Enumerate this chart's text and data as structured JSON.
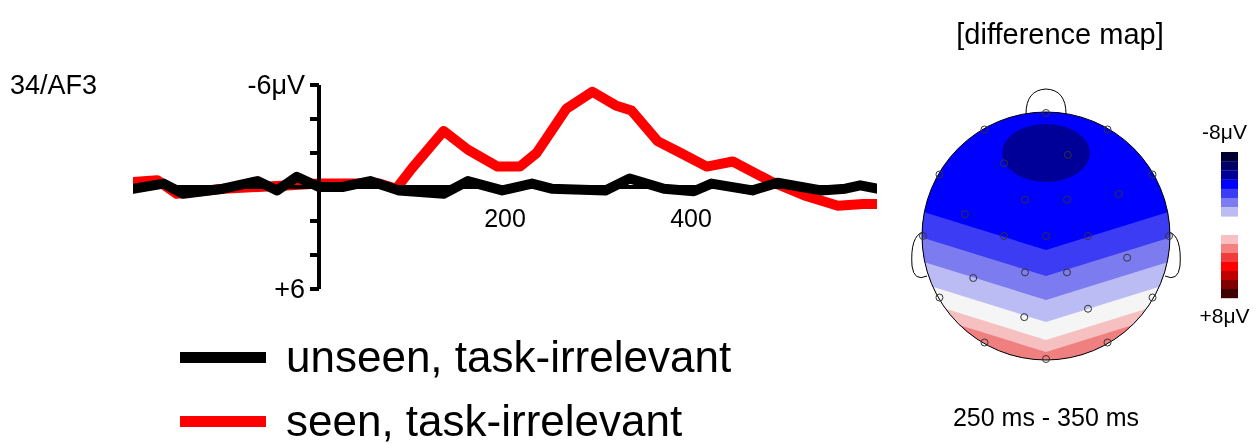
{
  "chart_data": [
    {
      "type": "line",
      "title": "34/AF3",
      "xlim": [
        -200,
        600
      ],
      "xticks": [
        200,
        400
      ],
      "ylim": [
        6,
        -6
      ],
      "yticks": [
        {
          "value": -6,
          "label": "-6μV"
        },
        {
          "value": -4,
          "label": null
        },
        {
          "value": -2,
          "label": null
        },
        {
          "value": 0,
          "label": null
        },
        {
          "value": 2,
          "label": null
        },
        {
          "value": 4,
          "label": null
        },
        {
          "value": 6,
          "label": "+6"
        }
      ],
      "legend": "bottom",
      "series": [
        {
          "name": "unseen, task-irrelevant",
          "color": "#000000",
          "x": [
            -200,
            -167,
            -146,
            -103,
            -66,
            -45,
            -24,
            0,
            25,
            55,
            86,
            134,
            160,
            197,
            229,
            250,
            308,
            334,
            371,
            403,
            422,
            466,
            493,
            540,
            566,
            582,
            600
          ],
          "values": [
            0.1,
            -0.2,
            0.4,
            0.1,
            -0.35,
            0.2,
            -0.6,
            0,
            0,
            -0.35,
            0.2,
            0.4,
            -0.35,
            0.2,
            -0.2,
            0.1,
            0.2,
            -0.5,
            0.1,
            0.25,
            -0.2,
            0.2,
            -0.25,
            0.2,
            0.1,
            -0.1,
            0.1
          ]
        },
        {
          "name": "seen, task-irrelevant",
          "color": "#ff0000",
          "x": [
            -200,
            -174,
            -153,
            -103,
            -30,
            0,
            65,
            83,
            100,
            134,
            160,
            192,
            216,
            234,
            266,
            294,
            319,
            336,
            364,
            389,
            417,
            445,
            487,
            522,
            558,
            585,
            600
          ],
          "values": [
            -0.3,
            -0.4,
            0.4,
            0.1,
            -0.1,
            -0.2,
            -0.2,
            0.1,
            -1.1,
            -3.3,
            -2.2,
            -1.2,
            -1.2,
            -2,
            -4.6,
            -5.6,
            -4.8,
            -4.5,
            -2.7,
            -2,
            -1.2,
            -1.5,
            -0.3,
            0.5,
            1.1,
            1,
            1
          ]
        }
      ]
    },
    {
      "type": "other",
      "title": "[difference map]",
      "annotations": [
        "-8μV",
        "+8μV",
        "250 ms - 350 ms"
      ]
    }
  ]
}
